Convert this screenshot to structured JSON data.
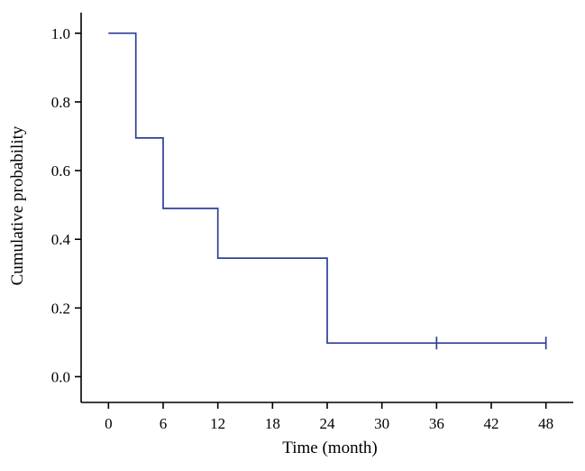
{
  "chart_data": {
    "type": "line",
    "subtype": "kaplan-meier-step",
    "title": "",
    "xlabel": "Time (month)",
    "ylabel": "Cumulative probability",
    "xlim": [
      -3,
      51
    ],
    "ylim": [
      -0.075,
      1.06
    ],
    "xticks": [
      0,
      6,
      12,
      18,
      24,
      30,
      36,
      42,
      48
    ],
    "yticks": [
      0.0,
      0.2,
      0.4,
      0.6,
      0.8,
      1.0
    ],
    "grid": false,
    "legend": "none",
    "line_color": "#2e4099",
    "axis_color": "#000000",
    "steps": [
      {
        "x": 0,
        "y": 1.0
      },
      {
        "x": 3,
        "y": 1.0
      },
      {
        "x": 3,
        "y": 0.695
      },
      {
        "x": 6,
        "y": 0.695
      },
      {
        "x": 6,
        "y": 0.49
      },
      {
        "x": 12,
        "y": 0.49
      },
      {
        "x": 12,
        "y": 0.345
      },
      {
        "x": 24,
        "y": 0.345
      },
      {
        "x": 24,
        "y": 0.098
      },
      {
        "x": 48,
        "y": 0.098
      }
    ],
    "censor_marks": [
      {
        "x": 36,
        "y": 0.098
      },
      {
        "x": 48,
        "y": 0.098
      }
    ]
  }
}
